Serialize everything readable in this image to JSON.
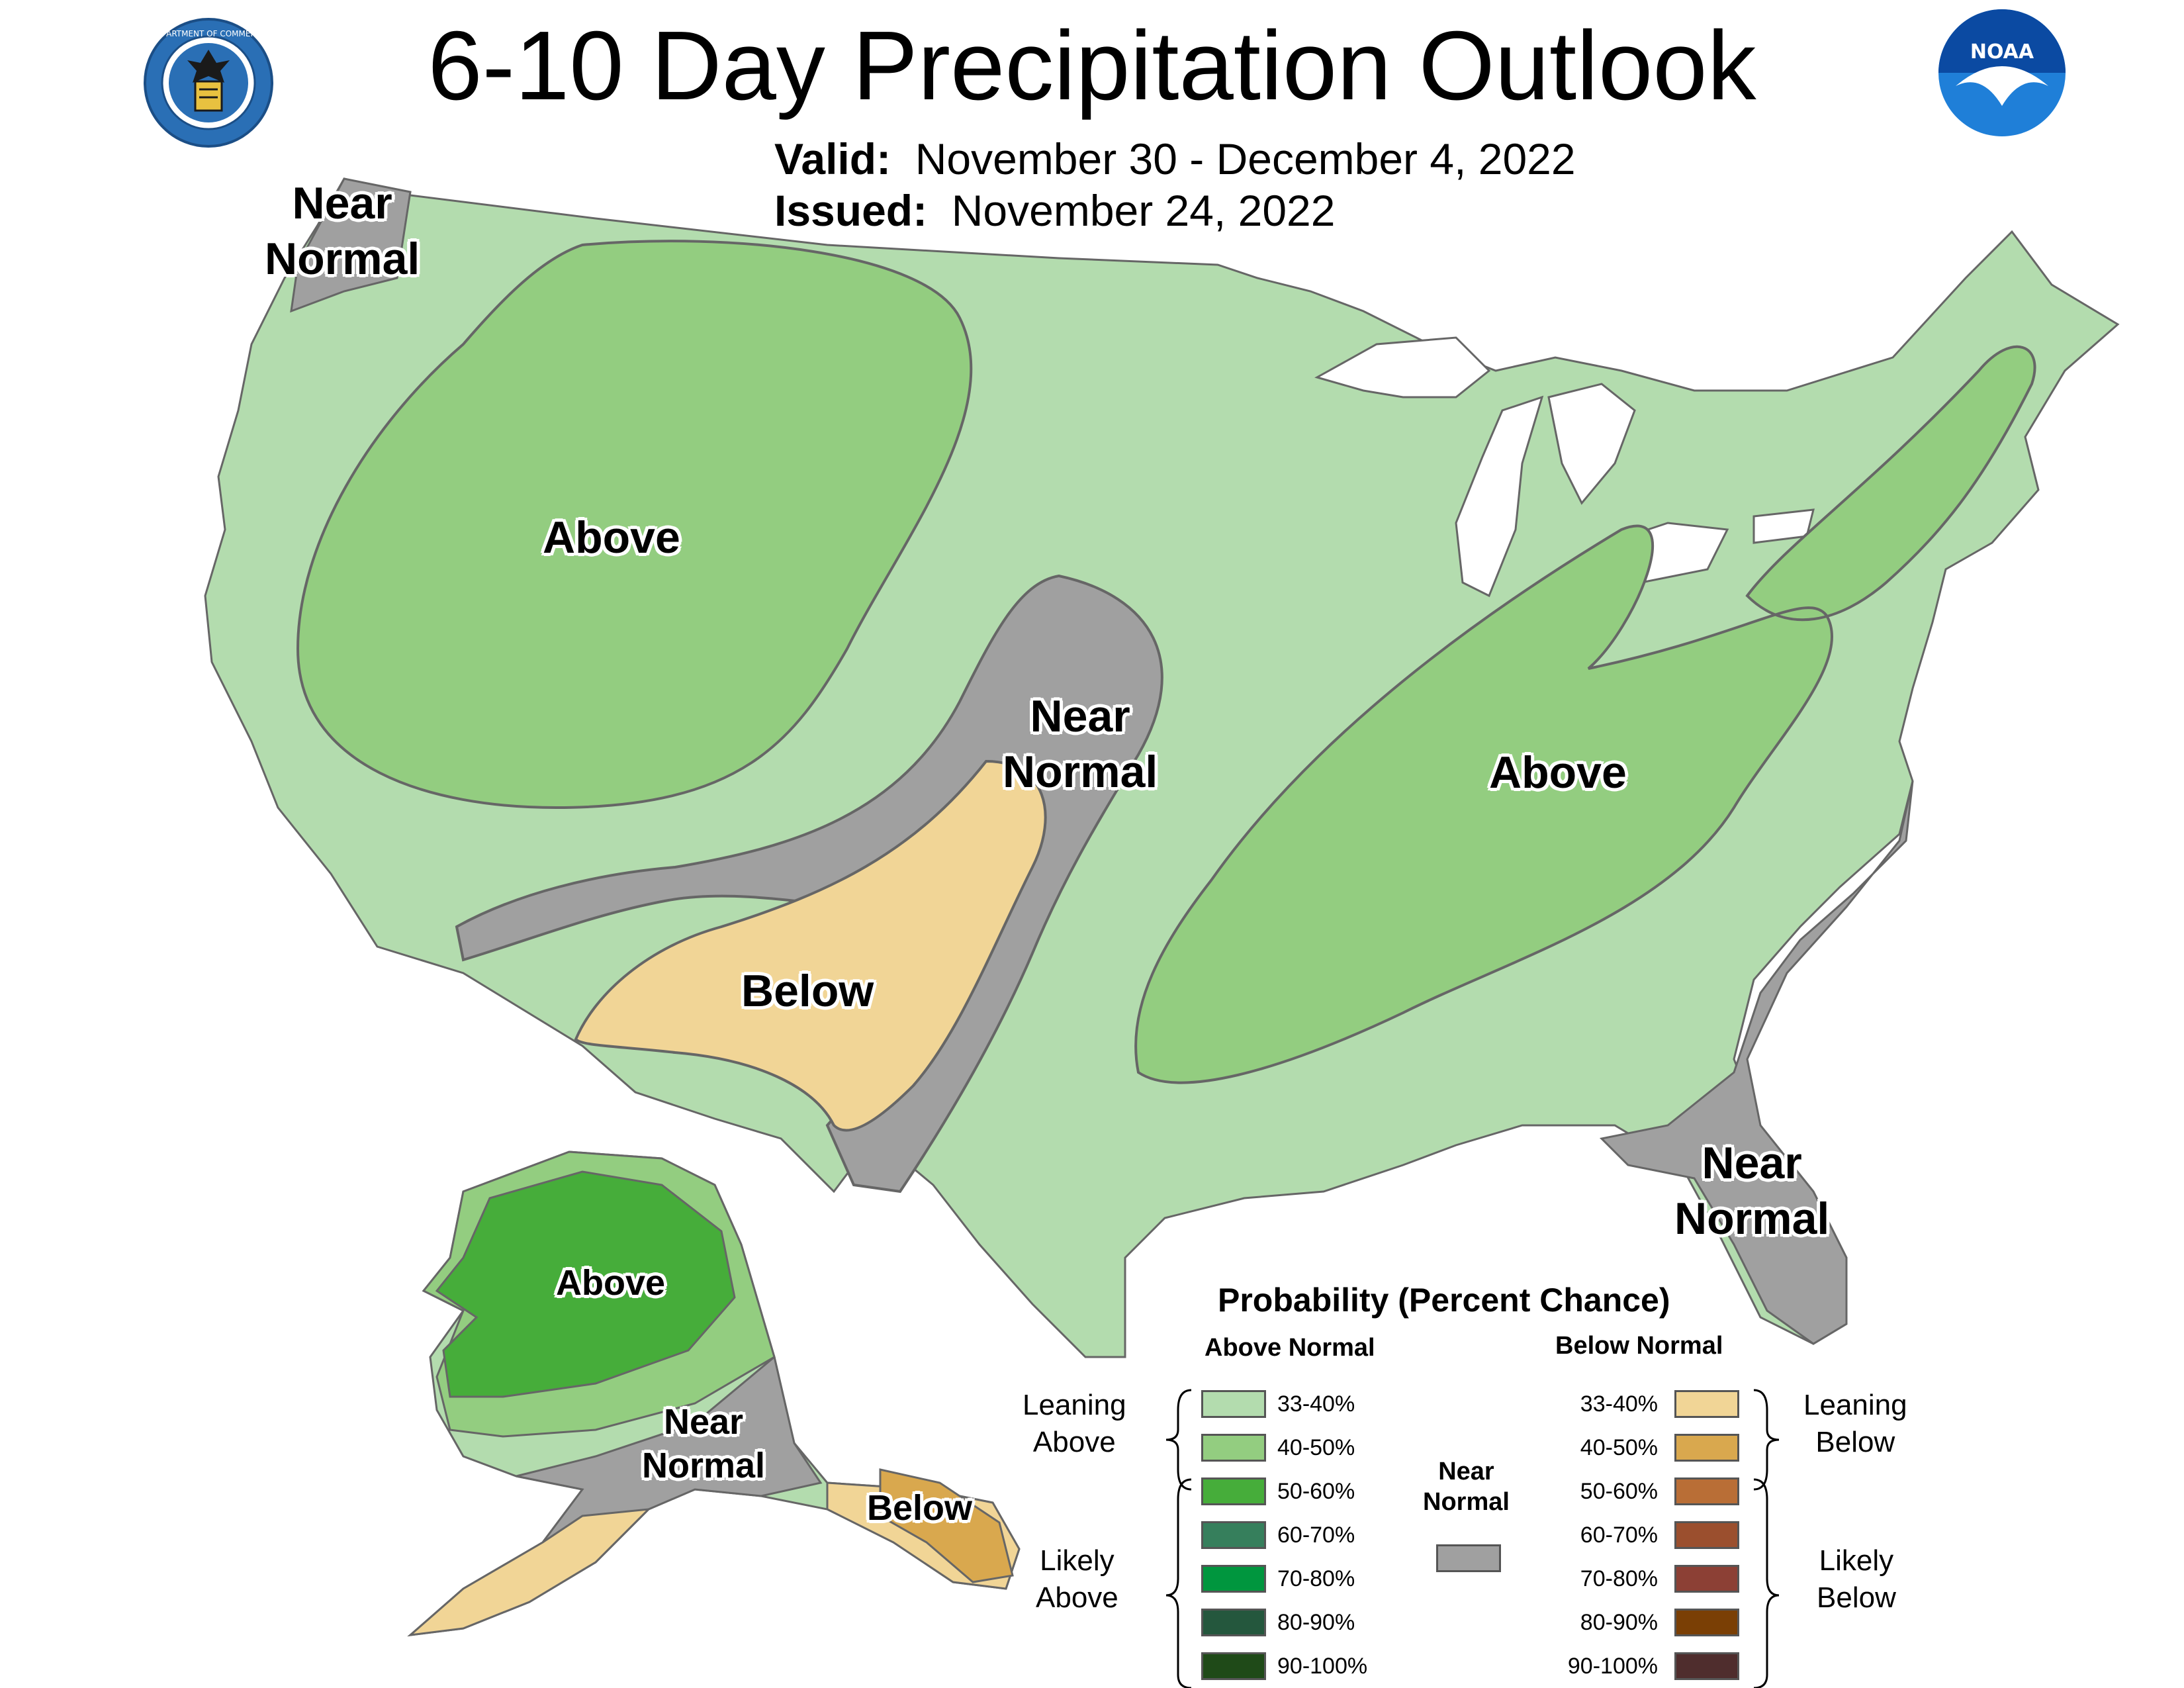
{
  "title": "6-10 Day Precipitation Outlook",
  "valid": {
    "label": "Valid:",
    "value": "November 30 - December 4, 2022"
  },
  "issued": {
    "label": "Issued:",
    "value": "November 24, 2022"
  },
  "logos": {
    "left": "department-of-commerce-seal",
    "right": "noaa-logo",
    "right_text": "NOAA"
  },
  "map_labels": {
    "near_normal_nw": [
      "Near",
      "Normal"
    ],
    "above_west": "Above",
    "near_normal_central": [
      "Near",
      "Normal"
    ],
    "below_sw": "Below",
    "above_east": "Above",
    "near_normal_fl": [
      "Near",
      "Normal"
    ],
    "above_ak": "Above",
    "near_normal_ak": [
      "Near",
      "Normal"
    ],
    "below_ak": "Below"
  },
  "legend": {
    "title": "Probability (Percent Chance)",
    "above_header": "Above Normal",
    "below_header": "Below Normal",
    "near_normal_label": [
      "Near",
      "Normal"
    ],
    "leaning_above": [
      "Leaning",
      "Above"
    ],
    "likely_above": [
      "Likely",
      "Above"
    ],
    "leaning_below": [
      "Leaning",
      "Below"
    ],
    "likely_below": [
      "Likely",
      "Below"
    ],
    "above_bins": [
      {
        "label": "33-40%",
        "color": "#b3dcae"
      },
      {
        "label": "40-50%",
        "color": "#93cd80"
      },
      {
        "label": "50-60%",
        "color": "#46ad3a"
      },
      {
        "label": "60-70%",
        "color": "#367f5c"
      },
      {
        "label": "70-80%",
        "color": "#00963e"
      },
      {
        "label": "80-90%",
        "color": "#24573d"
      },
      {
        "label": "90-100%",
        "color": "#1f4a18"
      }
    ],
    "below_bins": [
      {
        "label": "33-40%",
        "color": "#f1d596"
      },
      {
        "label": "40-50%",
        "color": "#d9a84e"
      },
      {
        "label": "50-60%",
        "color": "#b96e36"
      },
      {
        "label": "60-70%",
        "color": "#9b4f2e"
      },
      {
        "label": "70-80%",
        "color": "#8c4035"
      },
      {
        "label": "80-90%",
        "color": "#7a3f05"
      },
      {
        "label": "90-100%",
        "color": "#4f2d2d"
      }
    ],
    "near_normal_color": "#a0a0a0"
  }
}
